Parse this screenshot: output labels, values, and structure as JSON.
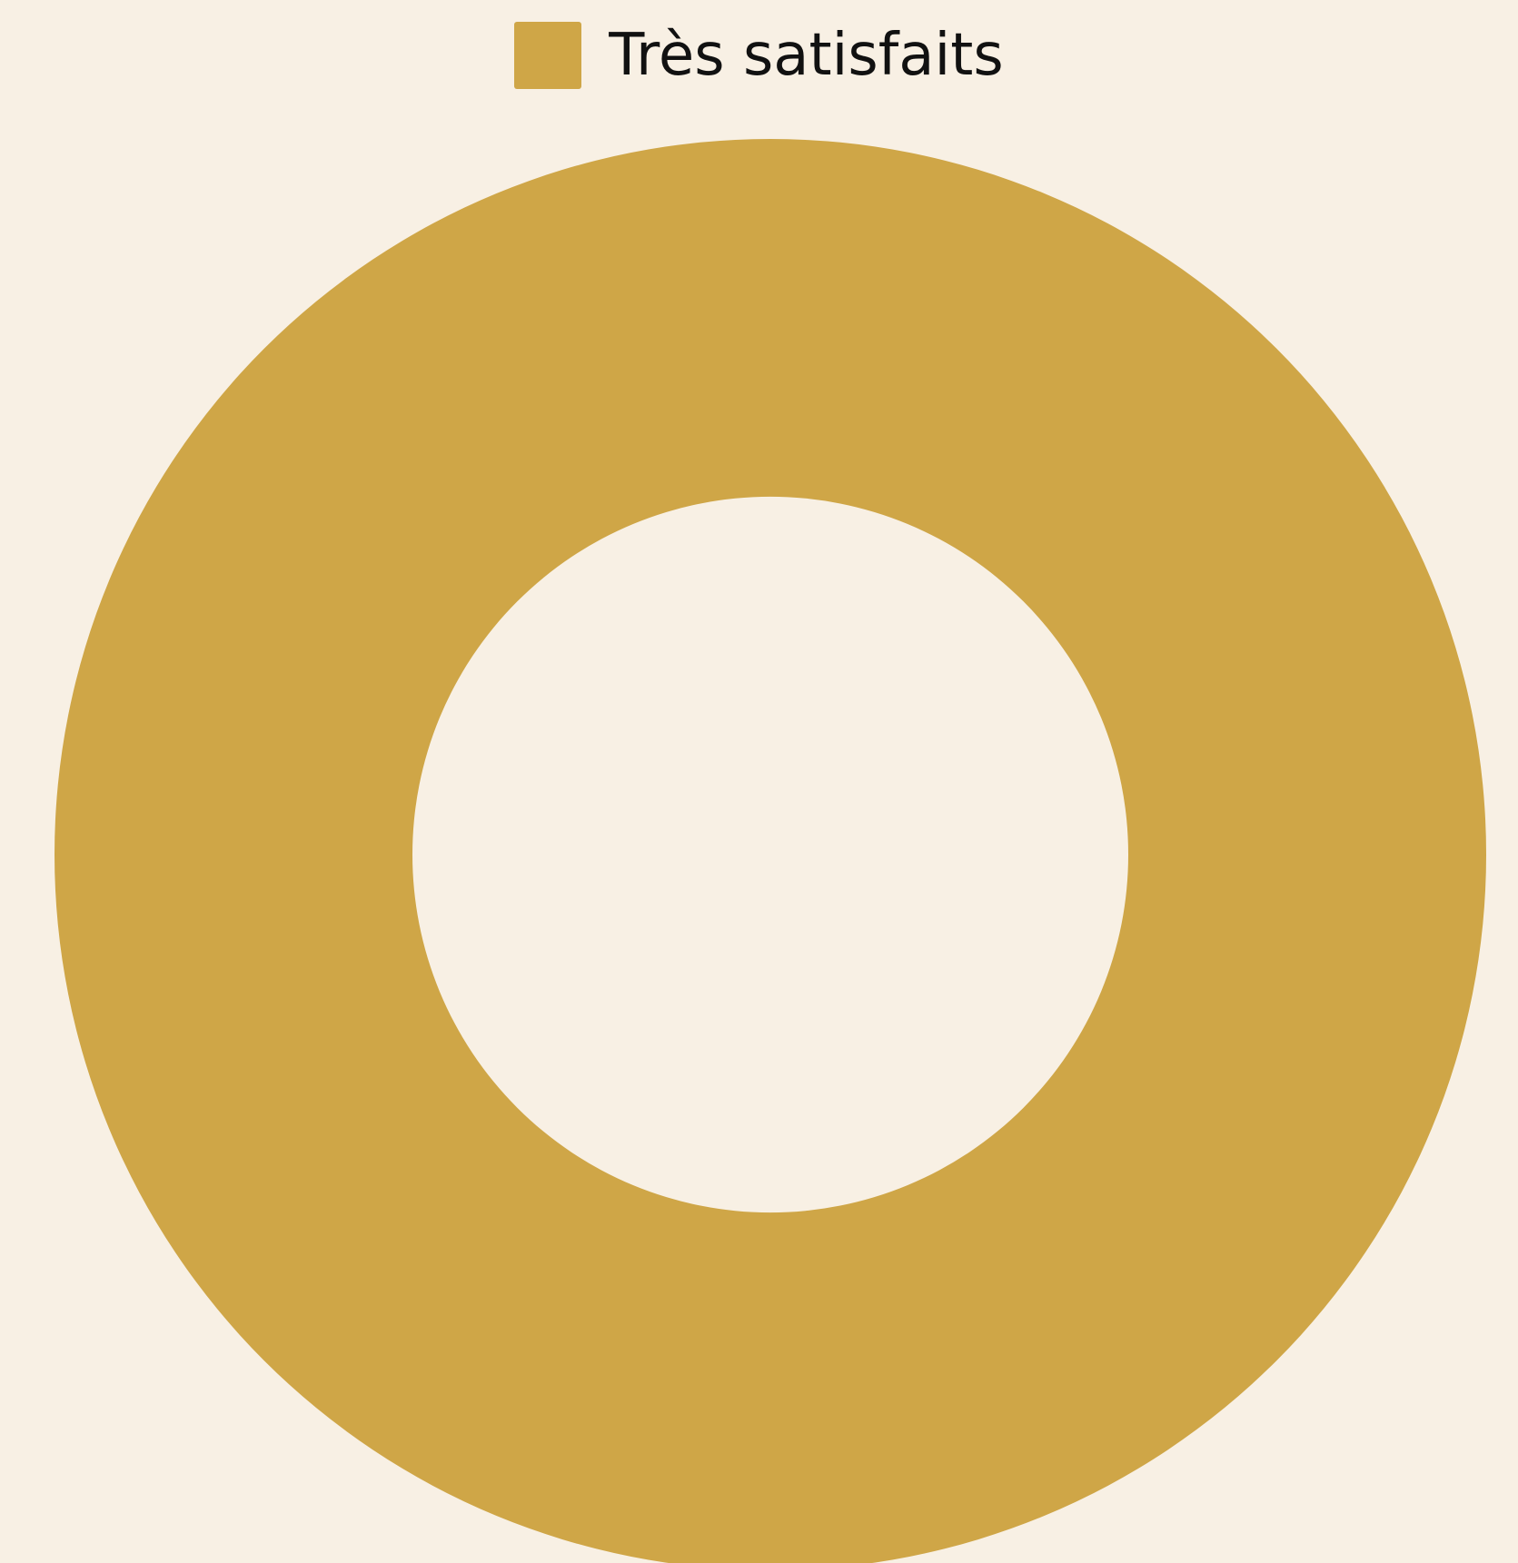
{
  "chart_data": {
    "type": "pie",
    "variant": "donut",
    "title": "",
    "legend_position": "top-center",
    "slices": [
      {
        "label": "Très satisfaits",
        "value": 100,
        "color": "#cfa647"
      }
    ]
  },
  "colors": {
    "background": "#f8f0e4",
    "text": "#111111"
  }
}
